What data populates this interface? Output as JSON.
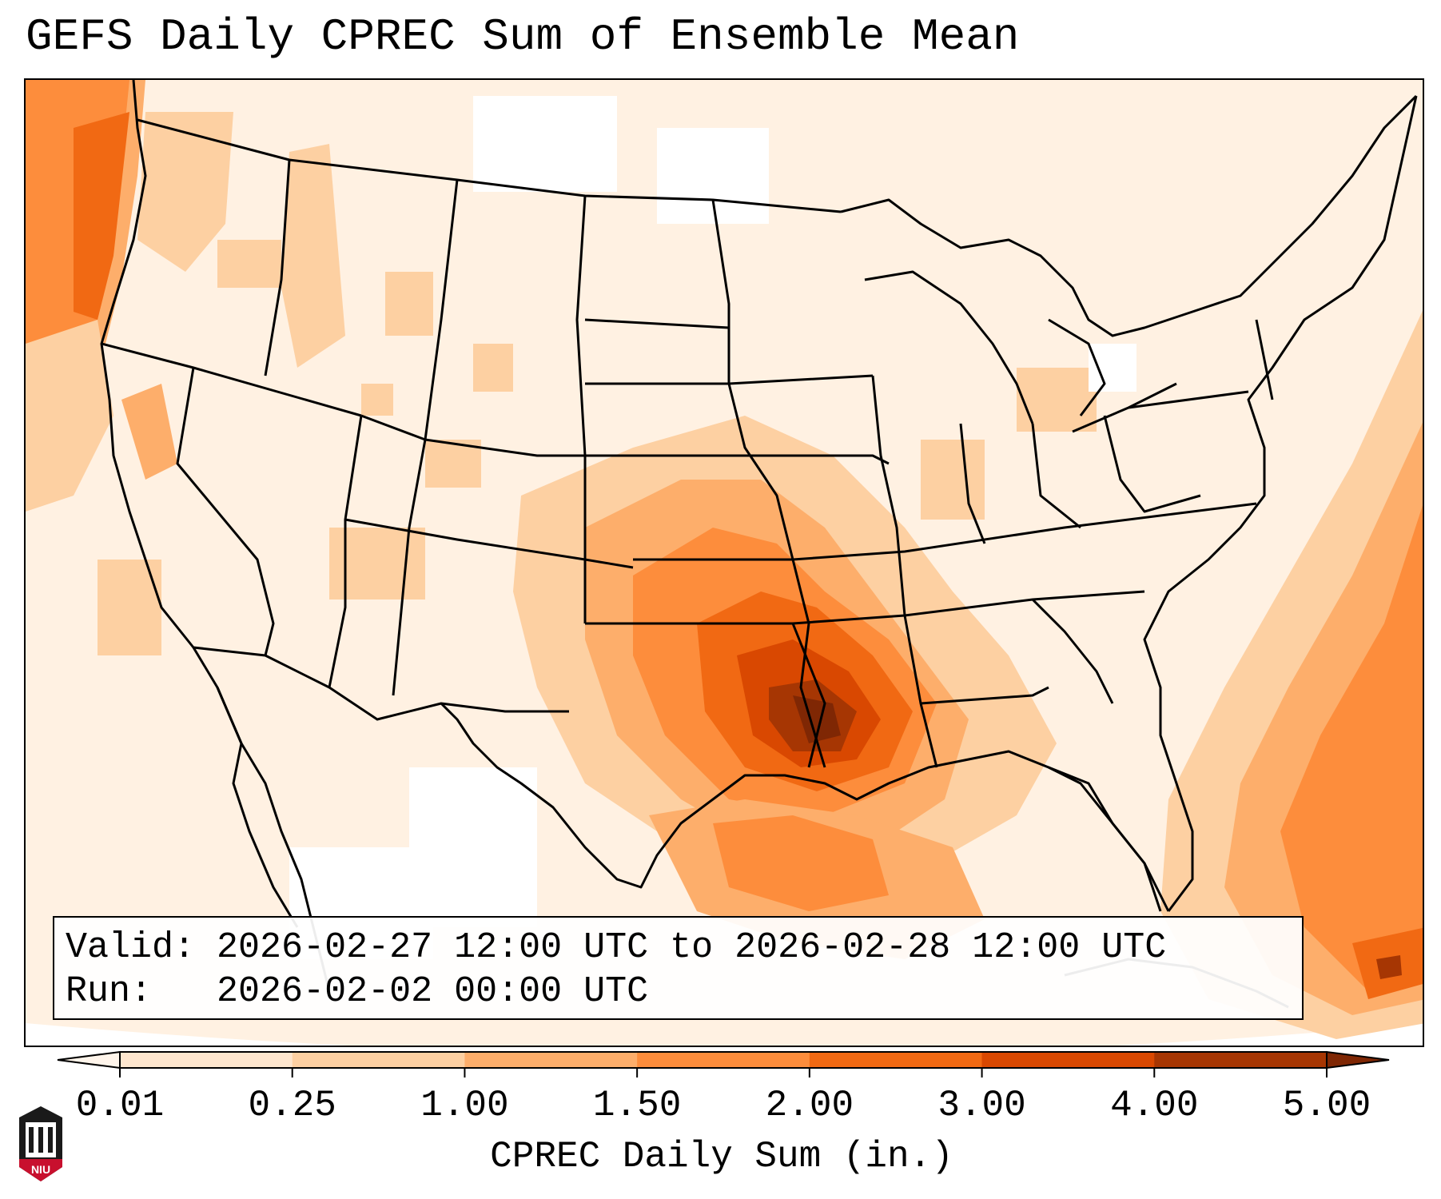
{
  "title": "GEFS Daily CPREC Sum of Ensemble Mean",
  "info": {
    "valid_label": "Valid:",
    "valid_value": "2026-02-27 12:00 UTC to 2026-02-28 12:00 UTC",
    "run_label": "Run:",
    "run_value": "2026-02-02 00:00 UTC"
  },
  "colorbar": {
    "label": "CPREC Daily Sum (in.)",
    "ticks": [
      "0.01",
      "0.25",
      "1.00",
      "1.50",
      "2.00",
      "3.00",
      "4.00",
      "5.00"
    ],
    "colors": [
      "#fff5eb",
      "#fee6ce",
      "#fdd0a2",
      "#fdae6b",
      "#fd8d3c",
      "#f16913",
      "#d94801",
      "#a63603",
      "#7f2704"
    ],
    "extend": "both"
  },
  "logo": {
    "text": "NIU",
    "colors": {
      "shield": "#c8102e",
      "dark": "#1a1a1a"
    }
  }
}
